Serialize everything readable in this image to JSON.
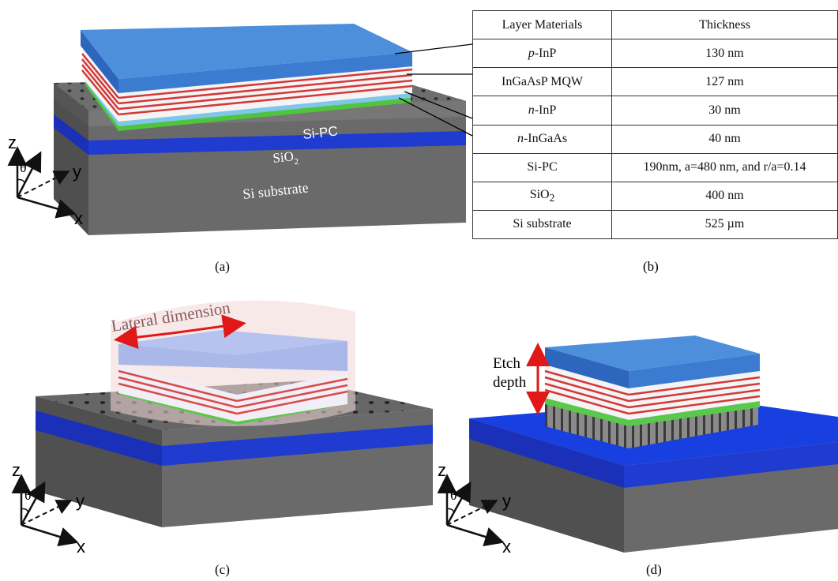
{
  "panel_a": {
    "labels": {
      "si_pc": "Si-PC",
      "sio2_base": "SiO",
      "sio2_sub": "2",
      "si_substrate": "Si substrate"
    },
    "caption": "(a)"
  },
  "panel_b": {
    "headers": [
      "Layer Materials",
      "Thickness"
    ],
    "rows": [
      {
        "prefix": "p",
        "material": "-InP",
        "thickness": "130 nm"
      },
      {
        "prefix": "",
        "material": "InGaAsP MQW",
        "thickness": "127 nm"
      },
      {
        "prefix": "n",
        "material": "-InP",
        "thickness": "30 nm"
      },
      {
        "prefix": "n",
        "material": "-InGaAs",
        "thickness": "40 nm"
      },
      {
        "prefix": "",
        "material": "Si-PC",
        "thickness": "190nm, a=480 nm, and r/a=0.14"
      },
      {
        "prefix": "",
        "material": "SiO",
        "sub": "2",
        "thickness": "400 nm"
      },
      {
        "prefix": "",
        "material": "Si substrate",
        "thickness": "525 µm"
      }
    ],
    "caption": "(b)"
  },
  "panel_c": {
    "lateral_label": "Lateral dimension",
    "caption": "(c)"
  },
  "panel_d": {
    "etch_line1": "Etch",
    "etch_line2": "depth",
    "caption": "(d)"
  },
  "axes": {
    "z": "z",
    "y": "y",
    "x": "x",
    "theta": "θ"
  },
  "colors": {
    "blue_top": "#4f90dc",
    "blue_side": "#2f6cc0",
    "mqw_red": "#d43838",
    "green": "#5ac84a",
    "gray_top": "#7a7a7a",
    "gray_side": "#5a5a5a",
    "sio2_blue": "#1a35c8",
    "arrow_red": "#e01818"
  }
}
